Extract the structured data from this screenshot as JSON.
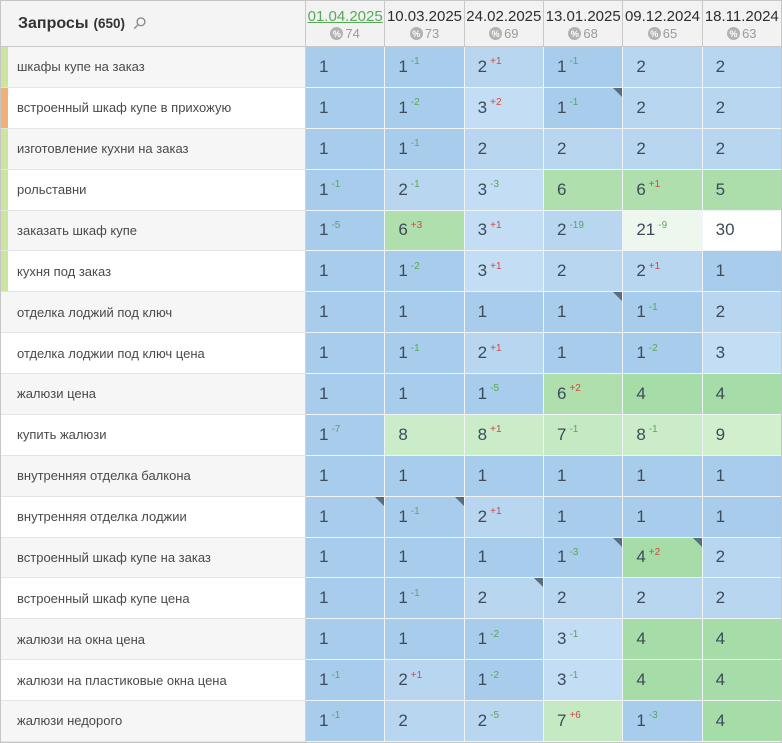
{
  "header": {
    "queries_label": "Запросы",
    "queries_count": "(650)",
    "search_icon": "magnifier",
    "percent_icon": "%",
    "columns": [
      {
        "date": "01.04.2025",
        "percent": "74",
        "active": true
      },
      {
        "date": "10.03.2025",
        "percent": "73",
        "active": false
      },
      {
        "date": "24.02.2025",
        "percent": "69",
        "active": false
      },
      {
        "date": "13.01.2025",
        "percent": "68",
        "active": false
      },
      {
        "date": "09.12.2024",
        "percent": "65",
        "active": false
      },
      {
        "date": "18.11.2024",
        "percent": "63",
        "active": false
      }
    ]
  },
  "colors": {
    "pos1": "#a8cdec",
    "pos2": "#b9d6f1",
    "pos3": "#c3ddf4",
    "pos4": "#a5dca7",
    "pos5": "#abdeaa",
    "pos6": "#aedfac",
    "pos7": "#c5e9c3",
    "pos8": "#caecc8",
    "pos9_10": "#d1eecd",
    "pos11_29": "#edf7ed",
    "pos30_plus": "#ffffff",
    "delta_up": "#58a758",
    "delta_down": "#cf4a41",
    "active_date": "#57a957",
    "strip_green": "#cde3a0",
    "strip_orange": "#f0b077",
    "corner_marker": "#5b6c7c"
  },
  "rows": [
    {
      "q": "шкафы купе на заказ",
      "strip": "green",
      "cells": [
        {
          "p": "1"
        },
        {
          "p": "1",
          "d": "-1"
        },
        {
          "p": "2",
          "d": "+1"
        },
        {
          "p": "1",
          "d": "-1"
        },
        {
          "p": "2"
        },
        {
          "p": "2"
        }
      ]
    },
    {
      "q": "встроенный шкаф купе в прихожую",
      "strip": "orange",
      "cells": [
        {
          "p": "1"
        },
        {
          "p": "1",
          "d": "-2"
        },
        {
          "p": "3",
          "d": "+2"
        },
        {
          "p": "1",
          "d": "-1",
          "m": true
        },
        {
          "p": "2"
        },
        {
          "p": "2"
        }
      ]
    },
    {
      "q": "изготовление кухни на заказ",
      "strip": "green",
      "cells": [
        {
          "p": "1"
        },
        {
          "p": "1",
          "d": "-1"
        },
        {
          "p": "2"
        },
        {
          "p": "2"
        },
        {
          "p": "2"
        },
        {
          "p": "2"
        }
      ]
    },
    {
      "q": "рольставни",
      "strip": "green",
      "cells": [
        {
          "p": "1",
          "d": "-1"
        },
        {
          "p": "2",
          "d": "-1"
        },
        {
          "p": "3",
          "d": "-3"
        },
        {
          "p": "6"
        },
        {
          "p": "6",
          "d": "+1"
        },
        {
          "p": "5"
        }
      ]
    },
    {
      "q": "заказать шкаф купе",
      "strip": "green",
      "cells": [
        {
          "p": "1",
          "d": "-5"
        },
        {
          "p": "6",
          "d": "+3"
        },
        {
          "p": "3",
          "d": "+1"
        },
        {
          "p": "2",
          "d": "-19"
        },
        {
          "p": "21",
          "d": "-9"
        },
        {
          "p": "30"
        }
      ]
    },
    {
      "q": "кухня под заказ",
      "strip": "green",
      "cells": [
        {
          "p": "1"
        },
        {
          "p": "1",
          "d": "-2"
        },
        {
          "p": "3",
          "d": "+1"
        },
        {
          "p": "2"
        },
        {
          "p": "2",
          "d": "+1"
        },
        {
          "p": "1"
        }
      ]
    },
    {
      "q": "отделка лоджий под ключ",
      "strip": null,
      "cells": [
        {
          "p": "1"
        },
        {
          "p": "1"
        },
        {
          "p": "1"
        },
        {
          "p": "1",
          "m": true
        },
        {
          "p": "1",
          "d": "-1"
        },
        {
          "p": "2"
        }
      ]
    },
    {
      "q": "отделка лоджии под ключ цена",
      "strip": null,
      "cells": [
        {
          "p": "1"
        },
        {
          "p": "1",
          "d": "-1"
        },
        {
          "p": "2",
          "d": "+1"
        },
        {
          "p": "1"
        },
        {
          "p": "1",
          "d": "-2"
        },
        {
          "p": "3"
        }
      ]
    },
    {
      "q": "жалюзи цена",
      "strip": null,
      "cells": [
        {
          "p": "1"
        },
        {
          "p": "1"
        },
        {
          "p": "1",
          "d": "-5"
        },
        {
          "p": "6",
          "d": "+2"
        },
        {
          "p": "4"
        },
        {
          "p": "4"
        }
      ]
    },
    {
      "q": "купить жалюзи",
      "strip": null,
      "cells": [
        {
          "p": "1",
          "d": "-7"
        },
        {
          "p": "8"
        },
        {
          "p": "8",
          "d": "+1"
        },
        {
          "p": "7",
          "d": "-1"
        },
        {
          "p": "8",
          "d": "-1"
        },
        {
          "p": "9"
        }
      ]
    },
    {
      "q": "внутренняя отделка балкона",
      "strip": null,
      "cells": [
        {
          "p": "1"
        },
        {
          "p": "1"
        },
        {
          "p": "1"
        },
        {
          "p": "1"
        },
        {
          "p": "1"
        },
        {
          "p": "1"
        }
      ]
    },
    {
      "q": "внутренняя отделка лоджии",
      "strip": null,
      "cells": [
        {
          "p": "1",
          "m": true
        },
        {
          "p": "1",
          "d": "-1",
          "m": true
        },
        {
          "p": "2",
          "d": "+1"
        },
        {
          "p": "1"
        },
        {
          "p": "1"
        },
        {
          "p": "1"
        }
      ]
    },
    {
      "q": "встроенный шкаф купе на заказ",
      "strip": null,
      "cells": [
        {
          "p": "1"
        },
        {
          "p": "1"
        },
        {
          "p": "1"
        },
        {
          "p": "1",
          "d": "-3",
          "m": true
        },
        {
          "p": "4",
          "d": "+2",
          "m": true
        },
        {
          "p": "2"
        }
      ]
    },
    {
      "q": "встроенный шкаф купе цена",
      "strip": null,
      "cells": [
        {
          "p": "1"
        },
        {
          "p": "1",
          "d": "-1"
        },
        {
          "p": "2",
          "m": true
        },
        {
          "p": "2"
        },
        {
          "p": "2"
        },
        {
          "p": "2"
        }
      ]
    },
    {
      "q": "жалюзи на окна цена",
      "strip": null,
      "cells": [
        {
          "p": "1"
        },
        {
          "p": "1"
        },
        {
          "p": "1",
          "d": "-2"
        },
        {
          "p": "3",
          "d": "-1"
        },
        {
          "p": "4"
        },
        {
          "p": "4"
        }
      ]
    },
    {
      "q": "жалюзи на пластиковые окна цена",
      "strip": null,
      "cells": [
        {
          "p": "1",
          "d": "-1"
        },
        {
          "p": "2",
          "d": "+1"
        },
        {
          "p": "1",
          "d": "-2"
        },
        {
          "p": "3",
          "d": "-1"
        },
        {
          "p": "4"
        },
        {
          "p": "4"
        }
      ]
    },
    {
      "q": "жалюзи недорого",
      "strip": null,
      "cells": [
        {
          "p": "1",
          "d": "-1"
        },
        {
          "p": "2"
        },
        {
          "p": "2",
          "d": "-5"
        },
        {
          "p": "7",
          "d": "+6"
        },
        {
          "p": "1",
          "d": "-3"
        },
        {
          "p": "4"
        }
      ]
    }
  ]
}
